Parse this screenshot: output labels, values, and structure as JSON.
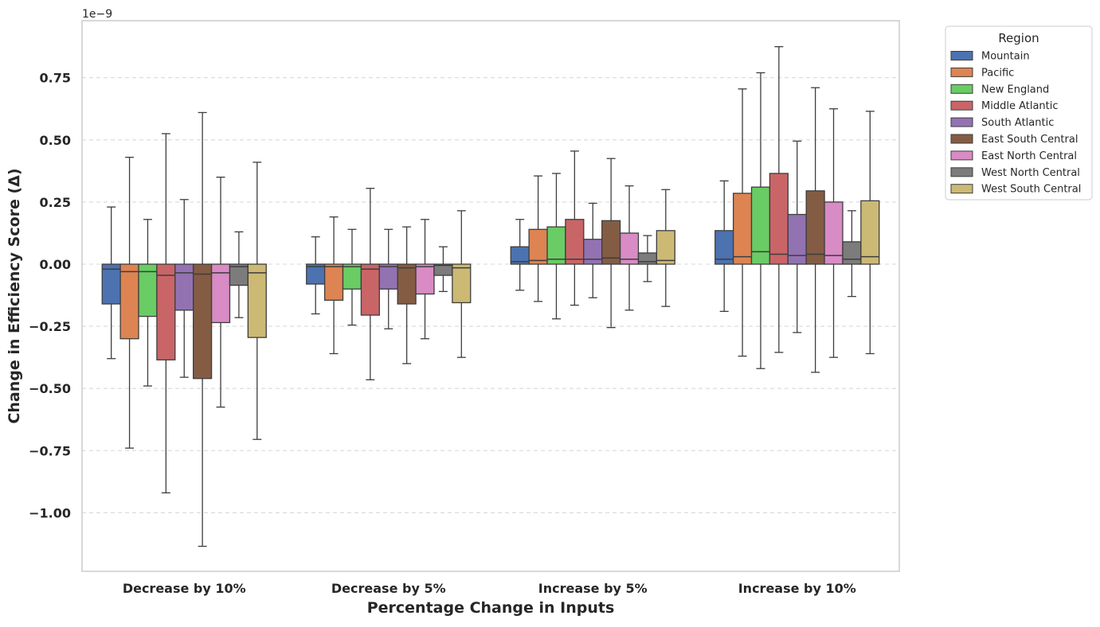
{
  "chart_data": {
    "type": "box",
    "x_axis_label": "Percentage Change in Inputs",
    "y_axis_label": "Change in Efficiency Score (Δ)",
    "y_scale_label": "1e−9",
    "ylim": [
      -1.23,
      0.98
    ],
    "y_ticks": [
      -1.0,
      -0.75,
      -0.5,
      -0.25,
      0.0,
      0.25,
      0.5,
      0.75
    ],
    "y_tick_labels": [
      "−1.00",
      "−0.75",
      "−0.50",
      "−0.25",
      "0.00",
      "0.25",
      "0.50",
      "0.75"
    ],
    "grid": "horizontal dashed",
    "categories": [
      "Decrease by 10%",
      "Decrease by 5%",
      "Increase by 5%",
      "Increase by 10%"
    ],
    "legend": {
      "title": "Region",
      "placement": "outside upper right"
    },
    "series": [
      {
        "name": "Mountain",
        "color": "#4c72b0",
        "boxes": [
          {
            "whislo": -0.38,
            "q1": -0.16,
            "med": -0.02,
            "q3": 0.0,
            "whishi": 0.23
          },
          {
            "whislo": -0.2,
            "q1": -0.08,
            "med": -0.01,
            "q3": 0.0,
            "whishi": 0.11
          },
          {
            "whislo": -0.105,
            "q1": 0.0,
            "med": 0.01,
            "q3": 0.07,
            "whishi": 0.18
          },
          {
            "whislo": -0.19,
            "q1": 0.0,
            "med": 0.02,
            "q3": 0.135,
            "whishi": 0.335
          }
        ]
      },
      {
        "name": "Pacific",
        "color": "#dd8452",
        "boxes": [
          {
            "whislo": -0.74,
            "q1": -0.3,
            "med": -0.03,
            "q3": 0.0,
            "whishi": 0.43
          },
          {
            "whislo": -0.36,
            "q1": -0.145,
            "med": -0.01,
            "q3": 0.0,
            "whishi": 0.19
          },
          {
            "whislo": -0.15,
            "q1": 0.0,
            "med": 0.015,
            "q3": 0.14,
            "whishi": 0.355
          },
          {
            "whislo": -0.37,
            "q1": 0.0,
            "med": 0.03,
            "q3": 0.285,
            "whishi": 0.705
          }
        ]
      },
      {
        "name": "New England",
        "color": "#6acc64",
        "boxes": [
          {
            "whislo": -0.49,
            "q1": -0.21,
            "med": -0.03,
            "q3": 0.0,
            "whishi": 0.18
          },
          {
            "whislo": -0.245,
            "q1": -0.1,
            "med": -0.01,
            "q3": 0.0,
            "whishi": 0.14
          },
          {
            "whislo": -0.22,
            "q1": 0.0,
            "med": 0.02,
            "q3": 0.15,
            "whishi": 0.365
          },
          {
            "whislo": -0.42,
            "q1": 0.0,
            "med": 0.05,
            "q3": 0.31,
            "whishi": 0.77
          }
        ]
      },
      {
        "name": "Middle Atlantic",
        "color": "#c96567",
        "boxes": [
          {
            "whislo": -0.92,
            "q1": -0.385,
            "med": -0.045,
            "q3": 0.0,
            "whishi": 0.525
          },
          {
            "whislo": -0.465,
            "q1": -0.205,
            "med": -0.02,
            "q3": 0.0,
            "whishi": 0.305
          },
          {
            "whislo": -0.165,
            "q1": 0.0,
            "med": 0.02,
            "q3": 0.18,
            "whishi": 0.455
          },
          {
            "whislo": -0.355,
            "q1": 0.0,
            "med": 0.04,
            "q3": 0.365,
            "whishi": 0.875
          }
        ]
      },
      {
        "name": "South Atlantic",
        "color": "#9372b2",
        "boxes": [
          {
            "whislo": -0.455,
            "q1": -0.185,
            "med": -0.035,
            "q3": 0.0,
            "whishi": 0.26
          },
          {
            "whislo": -0.26,
            "q1": -0.1,
            "med": -0.01,
            "q3": 0.0,
            "whishi": 0.14
          },
          {
            "whislo": -0.135,
            "q1": 0.0,
            "med": 0.02,
            "q3": 0.1,
            "whishi": 0.245
          },
          {
            "whislo": -0.275,
            "q1": 0.0,
            "med": 0.035,
            "q3": 0.2,
            "whishi": 0.495
          }
        ]
      },
      {
        "name": "East South Central",
        "color": "#845c44",
        "boxes": [
          {
            "whislo": -1.135,
            "q1": -0.46,
            "med": -0.04,
            "q3": 0.0,
            "whishi": 0.61
          },
          {
            "whislo": -0.4,
            "q1": -0.16,
            "med": -0.015,
            "q3": 0.0,
            "whishi": 0.15
          },
          {
            "whislo": -0.255,
            "q1": 0.0,
            "med": 0.025,
            "q3": 0.175,
            "whishi": 0.425
          },
          {
            "whislo": -0.435,
            "q1": 0.0,
            "med": 0.04,
            "q3": 0.295,
            "whishi": 0.71
          }
        ]
      },
      {
        "name": "East North Central",
        "color": "#d88bc4",
        "boxes": [
          {
            "whislo": -0.575,
            "q1": -0.235,
            "med": -0.035,
            "q3": 0.0,
            "whishi": 0.35
          },
          {
            "whislo": -0.3,
            "q1": -0.12,
            "med": -0.01,
            "q3": 0.0,
            "whishi": 0.18
          },
          {
            "whislo": -0.185,
            "q1": 0.0,
            "med": 0.02,
            "q3": 0.125,
            "whishi": 0.315
          },
          {
            "whislo": -0.375,
            "q1": 0.0,
            "med": 0.035,
            "q3": 0.25,
            "whishi": 0.625
          }
        ]
      },
      {
        "name": "West North Central",
        "color": "#7c7c7c",
        "boxes": [
          {
            "whislo": -0.215,
            "q1": -0.085,
            "med": -0.01,
            "q3": 0.0,
            "whishi": 0.13
          },
          {
            "whislo": -0.11,
            "q1": -0.045,
            "med": -0.005,
            "q3": 0.0,
            "whishi": 0.07
          },
          {
            "whislo": -0.07,
            "q1": 0.0,
            "med": 0.01,
            "q3": 0.045,
            "whishi": 0.115
          },
          {
            "whislo": -0.13,
            "q1": 0.0,
            "med": 0.02,
            "q3": 0.09,
            "whishi": 0.215
          }
        ]
      },
      {
        "name": "West South Central",
        "color": "#ccb974",
        "boxes": [
          {
            "whislo": -0.705,
            "q1": -0.295,
            "med": -0.035,
            "q3": 0.0,
            "whishi": 0.41
          },
          {
            "whislo": -0.375,
            "q1": -0.155,
            "med": -0.015,
            "q3": 0.0,
            "whishi": 0.215
          },
          {
            "whislo": -0.17,
            "q1": 0.0,
            "med": 0.015,
            "q3": 0.135,
            "whishi": 0.3
          },
          {
            "whislo": -0.36,
            "q1": 0.0,
            "med": 0.03,
            "q3": 0.255,
            "whishi": 0.615
          }
        ]
      }
    ]
  }
}
